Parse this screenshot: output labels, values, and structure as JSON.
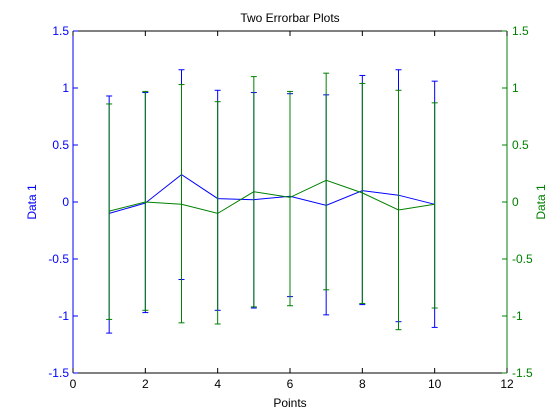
{
  "chart_data": {
    "type": "line",
    "title": "Two Errorbar Plots",
    "xlabel": "Points",
    "ylabel_left": "Data 1",
    "ylabel_right": "Data 1",
    "xlim": [
      0,
      12
    ],
    "ylim_left": [
      -1.5,
      1.5
    ],
    "ylim_right": [
      -1.5,
      1.5
    ],
    "x_ticks": [
      "0",
      "2",
      "4",
      "6",
      "8",
      "10",
      "12"
    ],
    "y_ticks_left": [
      "-1.5",
      "-1",
      "-0.5",
      "0",
      "0.5",
      "1",
      "1.5"
    ],
    "y_ticks_right": [
      "-1.5",
      "-1",
      "-0.5",
      "0",
      "0.5",
      "1",
      "1.5"
    ],
    "grid": false,
    "colors": {
      "left": "#0000ff",
      "right": "#008000",
      "axes": "#000000"
    },
    "x": [
      1,
      2,
      3,
      4,
      5,
      6,
      7,
      8,
      9,
      10
    ],
    "series": [
      {
        "axis": "left",
        "color": "#0000ff",
        "values": [
          -0.1,
          -0.01,
          0.24,
          0.03,
          0.02,
          0.05,
          -0.03,
          0.1,
          0.06,
          -0.02
        ],
        "lower": [
          -1.15,
          -0.97,
          -0.68,
          -0.95,
          -0.93,
          -0.83,
          -0.99,
          -0.9,
          -1.05,
          -1.1
        ],
        "upper": [
          0.93,
          0.96,
          1.16,
          0.98,
          0.96,
          0.95,
          0.94,
          1.11,
          1.16,
          1.06
        ]
      },
      {
        "axis": "right",
        "color": "#008000",
        "values": [
          -0.08,
          0.0,
          -0.02,
          -0.1,
          0.09,
          0.04,
          0.19,
          0.08,
          -0.07,
          -0.02
        ],
        "lower": [
          -1.03,
          -0.95,
          -1.06,
          -1.07,
          -0.92,
          -0.91,
          -0.77,
          -0.89,
          -1.12,
          -0.93
        ],
        "upper": [
          0.86,
          0.97,
          1.03,
          0.88,
          1.1,
          0.97,
          1.13,
          1.04,
          0.98,
          0.87
        ]
      }
    ]
  }
}
